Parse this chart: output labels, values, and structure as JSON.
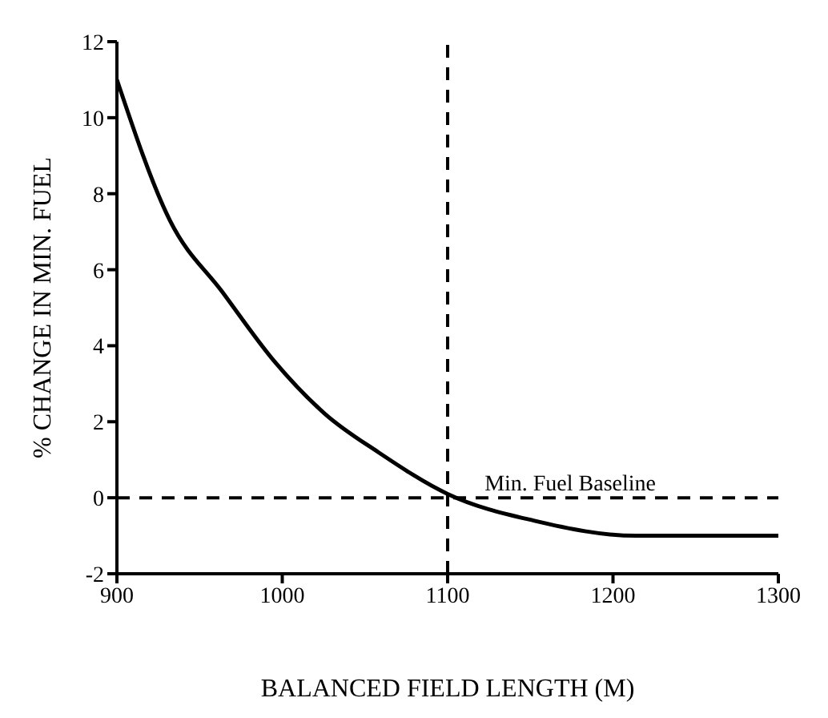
{
  "chart_data": {
    "type": "line",
    "xlabel": "BALANCED FIELD LENGTH (M)",
    "ylabel": "% CHANGE IN MIN. FUEL",
    "x": [
      900,
      932,
      964,
      995,
      1026,
      1058,
      1100,
      1152,
      1214,
      1300
    ],
    "series": [
      {
        "color": "#000000",
        "values": [
          11.0,
          7.3,
          5.4,
          3.6,
          2.2,
          1.2,
          0.1,
          -0.6,
          -1.0,
          -1.0
        ]
      }
    ],
    "xlim": [
      900,
      1300
    ],
    "xticks": [
      900,
      1000,
      1100,
      1200,
      1300
    ],
    "ylim": [
      -2,
      12
    ],
    "yticks": [
      -2,
      0,
      2,
      4,
      6,
      8,
      10,
      12
    ],
    "grid": false,
    "legend": false,
    "marker": "none",
    "line_style": "solid",
    "ref_lines": [
      {
        "axis": "y",
        "value": 0,
        "line_style": "dashed",
        "color": "#000000"
      },
      {
        "axis": "x",
        "value": 1100,
        "label": "Min. Fuel Baseline",
        "line_style": "dashed",
        "color": "#000000"
      }
    ]
  }
}
